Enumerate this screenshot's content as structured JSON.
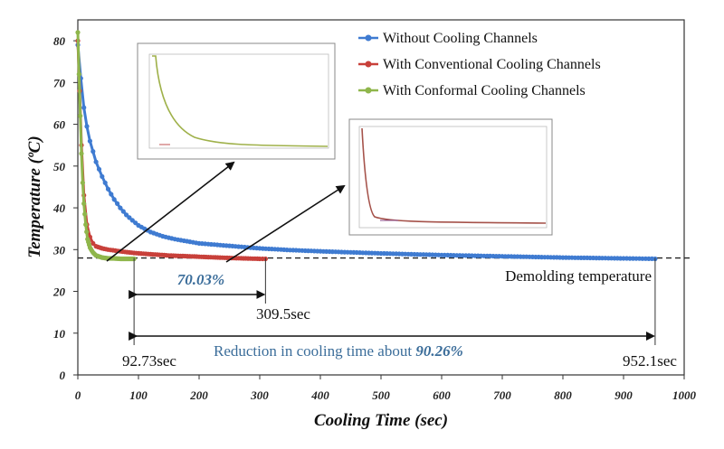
{
  "chart_data": {
    "type": "line",
    "title": "",
    "xlabel": "Cooling Time (sec)",
    "ylabel": "Temperature (ºC)",
    "xlim": [
      0,
      1000
    ],
    "ylim": [
      0,
      85
    ],
    "x_ticks": [
      0,
      100,
      200,
      300,
      400,
      500,
      600,
      700,
      800,
      900,
      1000
    ],
    "y_ticks": [
      0,
      10,
      20,
      30,
      40,
      50,
      60,
      70,
      80
    ],
    "legend_position": "top-right",
    "series": [
      {
        "name": "Without Cooling Channels",
        "color": "#3f7bd1",
        "x": [
          0,
          5,
          10,
          15,
          20,
          30,
          40,
          50,
          60,
          70,
          80,
          90,
          100,
          120,
          140,
          160,
          180,
          200,
          250,
          300,
          350,
          400,
          500,
          600,
          700,
          800,
          900,
          952.1
        ],
        "y": [
          79,
          71,
          64,
          59.5,
          56,
          51,
          47.5,
          44.5,
          42,
          40,
          38.3,
          37,
          35.8,
          34.2,
          33.2,
          32.5,
          32,
          31.5,
          30.9,
          30.3,
          29.9,
          29.6,
          29.1,
          28.7,
          28.4,
          28.1,
          27.9,
          27.8
        ]
      },
      {
        "name": "With Conventional Cooling Channels",
        "color": "#c8403a",
        "x": [
          0,
          3,
          6,
          10,
          15,
          20,
          25,
          30,
          40,
          50,
          70,
          92.73,
          120,
          150,
          200,
          250,
          300,
          309.5
        ],
        "y": [
          80,
          68,
          55,
          43,
          36,
          33,
          31.5,
          30.8,
          30.3,
          30,
          29.6,
          29.2,
          28.9,
          28.6,
          28.3,
          28,
          27.8,
          27.8
        ]
      },
      {
        "name": "With Conformal Cooling Channels",
        "color": "#8fb64b",
        "x": [
          0,
          2,
          4,
          6,
          8,
          10,
          13,
          16,
          20,
          25,
          30,
          40,
          50,
          60,
          70,
          80,
          92.73
        ],
        "y": [
          82,
          72,
          62,
          53,
          46,
          41,
          36,
          32.5,
          30.5,
          29.3,
          28.6,
          28.1,
          27.9,
          27.9,
          27.8,
          27.8,
          27.8
        ]
      }
    ],
    "reference_line": {
      "label": "Demolding temperature",
      "y": 28,
      "style": "dashed"
    },
    "annotations": {
      "t_conformal": "92.73sec",
      "t_conventional": "309.5sec",
      "t_without": "952.1sec",
      "reduction_small": "70.03%",
      "reduction_text": "Reduction in cooling time about ",
      "reduction_big": "90.26%"
    }
  }
}
